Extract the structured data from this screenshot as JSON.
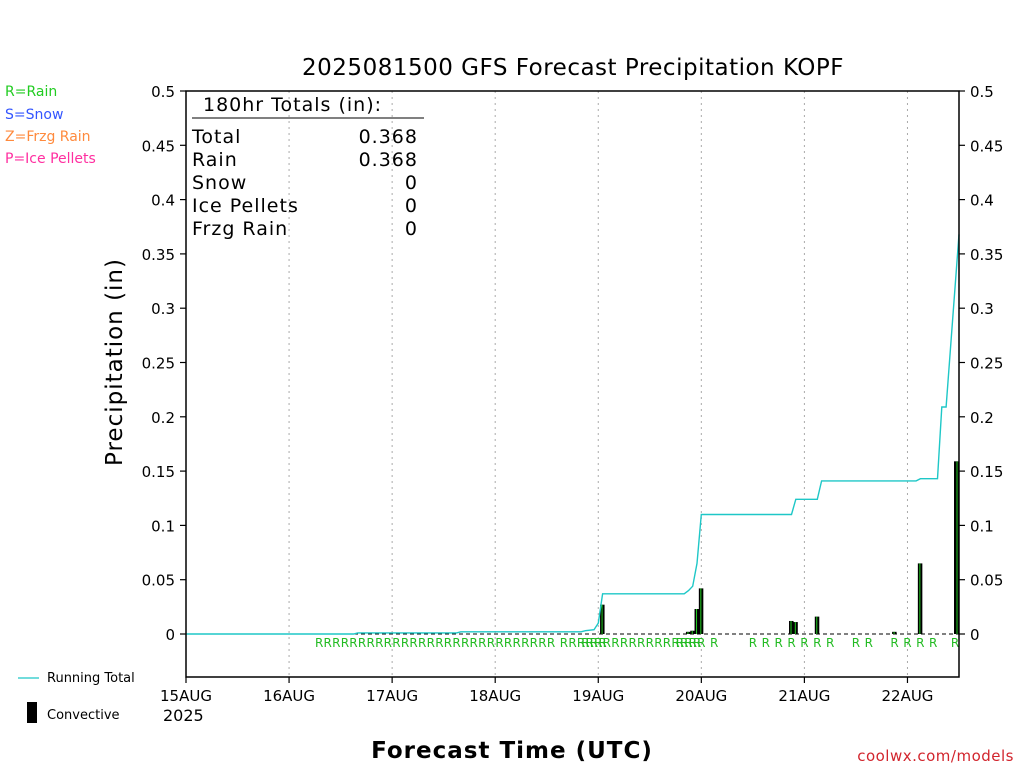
{
  "colors": {
    "rain": "#22cc22",
    "snow": "#3355ff",
    "frzg_rain": "#ff8a3d",
    "ice_pellets": "#ff2fa0",
    "running_total": "#1ec7c7",
    "convective": "#000000",
    "credit": "#d2252d"
  },
  "legend_left": {
    "rain": "R=Rain",
    "snow": "S=Snow",
    "frzg_rain": "Z=Frzg Rain",
    "ice_pellets": "P=Ice Pellets"
  },
  "legend_bottom": {
    "running_total": "Running Total",
    "convective": "Convective"
  },
  "totals_box": {
    "header": "180hr Totals (in):",
    "rows": [
      {
        "label": "Total",
        "value": "0.368"
      },
      {
        "label": "Rain",
        "value": "0.368"
      },
      {
        "label": "Snow",
        "value": "0"
      },
      {
        "label": "Ice Pellets",
        "value": "0"
      },
      {
        "label": "Frzg Rain",
        "value": "0"
      }
    ]
  },
  "credit": "coolwx.com/models",
  "chart_data": {
    "type": "line",
    "title": "2025081500 GFS Forecast Precipitation KOPF",
    "xlabel": "Forecast Time (UTC)",
    "ylabel": "Precipitation (in)",
    "ylim": [
      0,
      0.5
    ],
    "yticks": [
      "0",
      "0.05",
      "0.1",
      "0.15",
      "0.2",
      "0.25",
      "0.3",
      "0.35",
      "0.4",
      "0.45",
      "0.5"
    ],
    "xlim_hours": [
      0,
      180
    ],
    "x_unit": "forecast hour",
    "xticks": [
      {
        "hour": 0,
        "label": "15AUG"
      },
      {
        "hour": 24,
        "label": "16AUG"
      },
      {
        "hour": 48,
        "label": "17AUG"
      },
      {
        "hour": 72,
        "label": "18AUG"
      },
      {
        "hour": 96,
        "label": "19AUG"
      },
      {
        "hour": 120,
        "label": "20AUG"
      },
      {
        "hour": 144,
        "label": "21AUG"
      },
      {
        "hour": 168,
        "label": "22AUG"
      }
    ],
    "year_label": "2025",
    "grid": "vertical dotted at day boundaries",
    "running_total": {
      "hours": [
        0,
        39,
        40,
        63,
        64,
        92,
        93,
        95,
        96,
        97,
        116,
        117,
        118,
        119,
        120,
        141,
        142,
        147,
        148,
        170,
        171,
        175,
        176,
        177,
        180
      ],
      "values": [
        0,
        0,
        0.001,
        0.001,
        0.002,
        0.002,
        0.003,
        0.004,
        0.01,
        0.037,
        0.037,
        0.04,
        0.044,
        0.065,
        0.11,
        0.11,
        0.124,
        0.124,
        0.141,
        0.141,
        0.143,
        0.143,
        0.209,
        0.209,
        0.368
      ]
    },
    "convective_bars": {
      "hours": [
        97,
        117,
        118,
        119,
        120,
        141,
        142,
        147,
        165,
        171,
        180
      ],
      "values": [
        0.027,
        0.002,
        0.003,
        0.023,
        0.042,
        0.012,
        0.011,
        0.016,
        0.002,
        0.065,
        0.159
      ]
    },
    "rain_marker_hours": [
      31,
      33,
      35,
      37,
      39,
      41,
      43,
      45,
      47,
      49,
      51,
      53,
      55,
      57,
      59,
      61,
      63,
      65,
      67,
      69,
      71,
      73,
      75,
      77,
      79,
      81,
      83,
      85,
      88,
      90,
      92,
      93,
      94,
      95,
      96,
      97,
      98,
      100,
      102,
      104,
      106,
      108,
      110,
      112,
      114,
      115,
      116,
      117,
      118,
      119,
      120,
      123,
      132,
      135,
      138,
      141,
      144,
      147,
      150,
      156,
      159,
      165,
      168,
      171,
      174,
      180
    ]
  }
}
